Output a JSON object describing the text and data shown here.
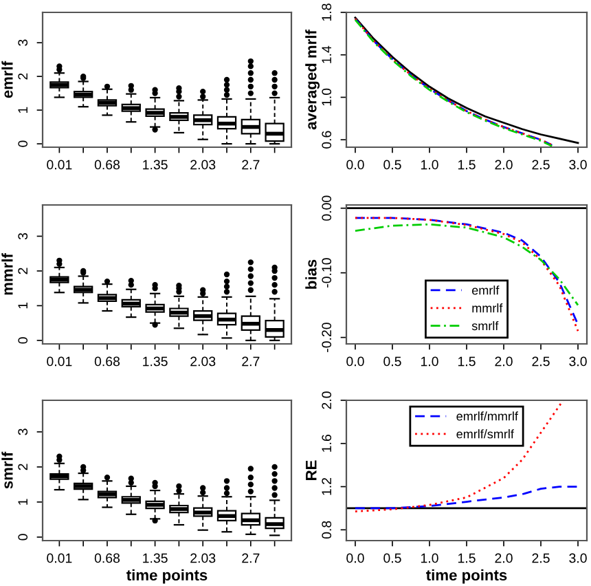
{
  "chart_data": [
    {
      "type": "box",
      "ylabel": "emrlf",
      "categories": [
        "0.01",
        null,
        "0.68",
        null,
        "1.35",
        null,
        "2.03",
        null,
        "2.7",
        null
      ],
      "ylim": [
        -0.1,
        3.9
      ],
      "yticks": [
        0,
        1,
        2,
        3
      ],
      "grid": false,
      "color": "#000000",
      "boxes": [
        {
          "low": 1.38,
          "q1": 1.67,
          "median": 1.75,
          "q3": 1.83,
          "high": 2.1,
          "outliers": [
            2.2,
            2.3
          ]
        },
        {
          "low": 1.1,
          "q1": 1.38,
          "median": 1.46,
          "q3": 1.55,
          "high": 1.85,
          "outliers": [
            1.95,
            2.0
          ]
        },
        {
          "low": 0.85,
          "q1": 1.13,
          "median": 1.22,
          "q3": 1.3,
          "high": 1.62,
          "outliers": [
            1.7
          ]
        },
        {
          "low": 0.65,
          "q1": 0.97,
          "median": 1.06,
          "q3": 1.17,
          "high": 1.48,
          "outliers": [
            1.6,
            1.72
          ]
        },
        {
          "low": 0.5,
          "q1": 0.82,
          "median": 0.92,
          "q3": 1.03,
          "high": 1.37,
          "outliers": [
            0.42,
            1.5,
            1.6
          ]
        },
        {
          "low": 0.33,
          "q1": 0.7,
          "median": 0.8,
          "q3": 0.92,
          "high": 1.28,
          "outliers": [
            1.4,
            1.55,
            1.65
          ]
        },
        {
          "low": 0.13,
          "q1": 0.57,
          "median": 0.7,
          "q3": 0.85,
          "high": 1.3,
          "outliers": [
            1.4,
            1.55
          ]
        },
        {
          "low": 0.0,
          "q1": 0.45,
          "median": 0.6,
          "q3": 0.8,
          "high": 1.33,
          "outliers": [
            1.45,
            1.6,
            1.75,
            1.9
          ]
        },
        {
          "low": 0.0,
          "q1": 0.3,
          "median": 0.5,
          "q3": 0.72,
          "high": 1.33,
          "outliers": [
            1.5,
            1.7,
            1.9,
            2.1,
            2.3,
            2.45
          ]
        },
        {
          "low": 0.0,
          "q1": 0.08,
          "median": 0.3,
          "q3": 0.6,
          "high": 1.37,
          "outliers": [
            1.5,
            1.7,
            1.9,
            2.1
          ]
        }
      ]
    },
    {
      "type": "line",
      "ylabel": "averaged mrlf",
      "xlim": [
        -0.12,
        3.12
      ],
      "xticks": [
        {
          "value": 0,
          "label": "0.0"
        },
        {
          "value": 0.5,
          "label": "0.5"
        },
        {
          "value": 1,
          "label": "1.0"
        },
        {
          "value": 1.5,
          "label": "1.5"
        },
        {
          "value": 2,
          "label": "2.0"
        },
        {
          "value": 2.5,
          "label": "2.5"
        },
        {
          "value": 3,
          "label": "3.0"
        }
      ],
      "ylim": [
        0.53,
        1.8
      ],
      "yticks": [
        0.6,
        {
          "value": 1.0,
          "label": "1.0"
        },
        1.4,
        1.8
      ],
      "grid": false,
      "legend": false,
      "series": [
        {
          "color": "#000000",
          "line_style": "solid",
          "x": [
            0,
            0.25,
            0.5,
            0.75,
            1,
            1.25,
            1.5,
            1.75,
            2,
            2.25,
            2.5,
            2.75,
            3
          ],
          "values": [
            1.75,
            1.55,
            1.38,
            1.23,
            1.1,
            0.99,
            0.9,
            0.82,
            0.76,
            0.7,
            0.65,
            0.61,
            0.57
          ]
        },
        {
          "color": "#0000ff",
          "line_style": "dashed",
          "x": [
            0,
            0.25,
            0.5,
            0.75,
            1,
            1.25,
            1.5,
            1.75,
            2,
            2.25,
            2.5,
            2.65
          ],
          "values": [
            1.74,
            1.53,
            1.36,
            1.21,
            1.08,
            0.97,
            0.87,
            0.79,
            0.72,
            0.66,
            0.6,
            0.55
          ]
        },
        {
          "color": "#ff0000",
          "line_style": "dotted",
          "x": [
            0,
            0.25,
            0.5,
            0.75,
            1,
            1.25,
            1.5,
            1.75,
            2,
            2.25,
            2.5,
            2.65
          ],
          "values": [
            1.74,
            1.53,
            1.36,
            1.21,
            1.08,
            0.97,
            0.87,
            0.79,
            0.72,
            0.66,
            0.6,
            0.55
          ]
        },
        {
          "color": "#00cc00",
          "line_style": "dashdot",
          "x": [
            0,
            0.25,
            0.5,
            0.75,
            1,
            1.25,
            1.5,
            1.75,
            2,
            2.25,
            2.5,
            2.65
          ],
          "values": [
            1.73,
            1.52,
            1.35,
            1.2,
            1.07,
            0.96,
            0.86,
            0.78,
            0.71,
            0.65,
            0.59,
            0.54
          ]
        }
      ]
    },
    {
      "type": "box",
      "ylabel": "mmrlf",
      "categories": [
        "0.01",
        null,
        "0.68",
        null,
        "1.35",
        null,
        "2.03",
        null,
        "2.7",
        null
      ],
      "ylim": [
        -0.1,
        3.9
      ],
      "yticks": [
        0,
        1,
        2,
        3
      ],
      "grid": false,
      "color": "#000000",
      "boxes": [
        {
          "low": 1.38,
          "q1": 1.67,
          "median": 1.75,
          "q3": 1.83,
          "high": 2.1,
          "outliers": [
            2.2,
            2.3
          ]
        },
        {
          "low": 1.08,
          "q1": 1.38,
          "median": 1.46,
          "q3": 1.55,
          "high": 1.85,
          "outliers": [
            1.95,
            2.0
          ]
        },
        {
          "low": 0.85,
          "q1": 1.13,
          "median": 1.22,
          "q3": 1.32,
          "high": 1.62,
          "outliers": [
            1.7
          ]
        },
        {
          "low": 0.67,
          "q1": 0.97,
          "median": 1.06,
          "q3": 1.17,
          "high": 1.47,
          "outliers": [
            1.6,
            1.72
          ]
        },
        {
          "low": 0.5,
          "q1": 0.82,
          "median": 0.92,
          "q3": 1.03,
          "high": 1.35,
          "outliers": [
            0.45,
            1.5,
            1.6
          ]
        },
        {
          "low": 0.35,
          "q1": 0.7,
          "median": 0.8,
          "q3": 0.92,
          "high": 1.27,
          "outliers": [
            1.4,
            1.5,
            1.58
          ]
        },
        {
          "low": 0.17,
          "q1": 0.58,
          "median": 0.7,
          "q3": 0.85,
          "high": 1.25,
          "outliers": [
            1.35,
            1.45
          ]
        },
        {
          "low": 0.07,
          "q1": 0.45,
          "median": 0.6,
          "q3": 0.78,
          "high": 1.25,
          "outliers": [
            1.4,
            1.55,
            1.7,
            1.9
          ]
        },
        {
          "low": 0.0,
          "q1": 0.3,
          "median": 0.48,
          "q3": 0.7,
          "high": 1.27,
          "outliers": [
            1.45,
            1.65,
            1.85,
            2.05,
            2.25
          ]
        },
        {
          "low": 0.0,
          "q1": 0.1,
          "median": 0.3,
          "q3": 0.57,
          "high": 1.2,
          "outliers": [
            1.4,
            1.6,
            1.8,
            2.0,
            2.1
          ]
        }
      ]
    },
    {
      "type": "line",
      "ylabel": "bias",
      "xlim": [
        -0.12,
        3.12
      ],
      "xticks": [
        {
          "value": 0,
          "label": "0.0"
        },
        {
          "value": 0.5,
          "label": "0.5"
        },
        {
          "value": 1,
          "label": "1.0"
        },
        {
          "value": 1.5,
          "label": "1.5"
        },
        {
          "value": 2,
          "label": "2.0"
        },
        {
          "value": 2.5,
          "label": "2.5"
        },
        {
          "value": 3,
          "label": "3.0"
        }
      ],
      "ylim": [
        -0.21,
        0.005
      ],
      "yticks": [
        {
          "value": -0.2,
          "label": "-0.20"
        },
        {
          "value": -0.1,
          "label": "-0.10"
        },
        {
          "value": 0,
          "label": "0.00"
        }
      ],
      "grid": false,
      "legend": "bottom",
      "ref_lines": [
        {
          "axis": "y",
          "value": 0,
          "color": "#000000",
          "line_style": "solid"
        }
      ],
      "series": [
        {
          "name": "emrlf",
          "color": "#0000ff",
          "line_style": "dashed",
          "x": [
            0,
            0.5,
            1,
            1.5,
            2,
            2.25,
            2.5,
            2.75,
            3
          ],
          "values": [
            -0.015,
            -0.015,
            -0.018,
            -0.025,
            -0.038,
            -0.05,
            -0.075,
            -0.115,
            -0.18
          ]
        },
        {
          "name": "mmrlf",
          "color": "#ff0000",
          "line_style": "dotted",
          "x": [
            0,
            0.5,
            1,
            1.5,
            2,
            2.25,
            2.5,
            2.75,
            3
          ],
          "values": [
            -0.015,
            -0.015,
            -0.018,
            -0.026,
            -0.04,
            -0.053,
            -0.08,
            -0.12,
            -0.19
          ]
        },
        {
          "name": "smrlf",
          "color": "#00cc00",
          "line_style": "dashdot",
          "x": [
            0,
            0.5,
            1,
            1.5,
            2,
            2.25,
            2.5,
            2.75,
            3
          ],
          "values": [
            -0.035,
            -0.027,
            -0.025,
            -0.03,
            -0.045,
            -0.06,
            -0.08,
            -0.11,
            -0.15
          ]
        }
      ]
    },
    {
      "type": "box",
      "ylabel": "smrlf",
      "xlabel": "time points",
      "categories": [
        "0.01",
        null,
        "0.68",
        null,
        "1.35",
        null,
        "2.03",
        null,
        "2.7",
        null
      ],
      "ylim": [
        -0.1,
        3.9
      ],
      "yticks": [
        0,
        1,
        2,
        3
      ],
      "grid": false,
      "color": "#000000",
      "boxes": [
        {
          "low": 1.35,
          "q1": 1.65,
          "median": 1.73,
          "q3": 1.8,
          "high": 2.1,
          "outliers": [
            2.2,
            2.3
          ]
        },
        {
          "low": 1.07,
          "q1": 1.37,
          "median": 1.45,
          "q3": 1.53,
          "high": 1.82,
          "outliers": [
            1.9,
            2.0
          ]
        },
        {
          "low": 0.85,
          "q1": 1.13,
          "median": 1.22,
          "q3": 1.3,
          "high": 1.6,
          "outliers": [
            1.7
          ]
        },
        {
          "low": 0.65,
          "q1": 0.97,
          "median": 1.06,
          "q3": 1.15,
          "high": 1.45,
          "outliers": [
            1.55,
            1.67
          ]
        },
        {
          "low": 0.52,
          "q1": 0.82,
          "median": 0.92,
          "q3": 1.02,
          "high": 1.33,
          "outliers": [
            0.47,
            1.45,
            1.55
          ]
        },
        {
          "low": 0.35,
          "q1": 0.7,
          "median": 0.8,
          "q3": 0.9,
          "high": 1.23,
          "outliers": [
            1.32,
            1.45
          ]
        },
        {
          "low": 0.2,
          "q1": 0.6,
          "median": 0.7,
          "q3": 0.83,
          "high": 1.17,
          "outliers": [
            1.27,
            1.4
          ]
        },
        {
          "low": 0.15,
          "q1": 0.47,
          "median": 0.6,
          "q3": 0.75,
          "high": 1.15,
          "outliers": [
            1.25,
            1.4,
            1.6
          ]
        },
        {
          "low": 0.08,
          "q1": 0.35,
          "median": 0.48,
          "q3": 0.67,
          "high": 1.15,
          "outliers": [
            1.3,
            1.5,
            1.7,
            1.95
          ]
        },
        {
          "low": 0.05,
          "q1": 0.25,
          "median": 0.37,
          "q3": 0.55,
          "high": 1.05,
          "outliers": [
            1.2,
            1.4,
            1.6,
            1.8,
            2.0
          ]
        }
      ]
    },
    {
      "type": "line",
      "ylabel": "RE",
      "xlabel": "time points",
      "xlim": [
        -0.12,
        3.12
      ],
      "xticks": [
        {
          "value": 0,
          "label": "0.0"
        },
        {
          "value": 0.5,
          "label": "0.5"
        },
        {
          "value": 1,
          "label": "1.0"
        },
        {
          "value": 1.5,
          "label": "1.5"
        },
        {
          "value": 2,
          "label": "2.0"
        },
        {
          "value": 2.5,
          "label": "2.5"
        },
        {
          "value": 3,
          "label": "3.0"
        }
      ],
      "ylim": [
        0.7,
        2.0
      ],
      "yticks": [
        0.8,
        1.2,
        1.6,
        {
          "value": 2.0,
          "label": "2.0"
        }
      ],
      "grid": false,
      "legend": "top",
      "ref_lines": [
        {
          "axis": "y",
          "value": 1,
          "color": "#000000",
          "line_style": "solid"
        }
      ],
      "series": [
        {
          "name": "emrlf/mmrlf",
          "color": "#0000ff",
          "line_style": "dashed",
          "x": [
            0,
            0.5,
            1,
            1.5,
            2,
            2.25,
            2.5,
            2.75,
            3
          ],
          "values": [
            1.0,
            1.0,
            1.02,
            1.06,
            1.1,
            1.13,
            1.18,
            1.2,
            1.2
          ]
        },
        {
          "name": "emrlf/smrlf",
          "color": "#ff0000",
          "line_style": "dotted",
          "x": [
            0,
            0.5,
            1,
            1.5,
            2,
            2.25,
            2.5,
            2.8
          ],
          "values": [
            0.97,
            0.99,
            1.03,
            1.1,
            1.28,
            1.45,
            1.7,
            2.0
          ]
        }
      ]
    }
  ]
}
